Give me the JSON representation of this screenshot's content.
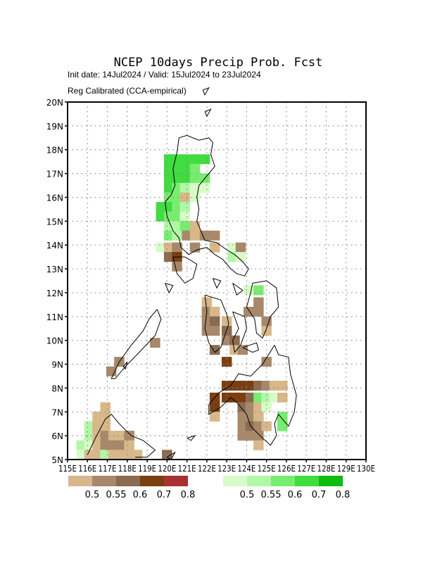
{
  "header": {
    "title": "NCEP 10days Precip Prob. Fcst",
    "init_line": "Init date: 14Jul2024 / Valid: 15Jul2024 to 23Jul2024",
    "method_line": "Reg Calibrated (CCA-empirical)"
  },
  "map": {
    "lon_range": [
      115,
      130
    ],
    "lat_range": [
      5,
      20
    ],
    "lat_labels": [
      "5N",
      "6N",
      "7N",
      "8N",
      "9N",
      "10N",
      "11N",
      "12N",
      "13N",
      "14N",
      "15N",
      "16N",
      "17N",
      "18N",
      "19N",
      "20N"
    ],
    "lon_labels": [
      "115E",
      "116E",
      "117E",
      "118E",
      "119E",
      "120E",
      "121E",
      "122E",
      "123E",
      "124E",
      "125E",
      "126E",
      "127E",
      "128E",
      "129E",
      "130E"
    ]
  },
  "legend": {
    "below_colors": [
      "#d8b88a",
      "#a8886a",
      "#8a6a50",
      "#7a3e10",
      "#a83232"
    ],
    "below_labels": [
      "0.5",
      "0.55",
      "0.6",
      "0.7",
      "0.8"
    ],
    "above_colors": [
      "#d8fcc8",
      "#b0f8a8",
      "#78ec70",
      "#40dc40",
      "#10bc10"
    ],
    "above_labels": [
      "0.5",
      "0.55",
      "0.6",
      "0.7",
      "0.8"
    ]
  },
  "cells": [
    {
      "lon": 120.1,
      "lat": 17.6,
      "c": "a3"
    },
    {
      "lon": 120.5,
      "lat": 17.6,
      "c": "a3"
    },
    {
      "lon": 120.9,
      "lat": 17.6,
      "c": "a3"
    },
    {
      "lon": 121.4,
      "lat": 17.6,
      "c": "a3"
    },
    {
      "lon": 121.9,
      "lat": 17.6,
      "c": "a3"
    },
    {
      "lon": 120.1,
      "lat": 17.2,
      "c": "a3"
    },
    {
      "lon": 120.5,
      "lat": 17.2,
      "c": "a3"
    },
    {
      "lon": 120.9,
      "lat": 17.2,
      "c": "a3"
    },
    {
      "lon": 121.4,
      "lat": 17.2,
      "c": "a2"
    },
    {
      "lon": 120.1,
      "lat": 16.8,
      "c": "a3"
    },
    {
      "lon": 120.5,
      "lat": 16.8,
      "c": "a3"
    },
    {
      "lon": 120.9,
      "lat": 16.8,
      "c": "a3"
    },
    {
      "lon": 121.4,
      "lat": 16.8,
      "c": "a2"
    },
    {
      "lon": 121.9,
      "lat": 16.8,
      "c": "a2"
    },
    {
      "lon": 120.1,
      "lat": 16.4,
      "c": "a3"
    },
    {
      "lon": 120.5,
      "lat": 16.4,
      "c": "a2"
    },
    {
      "lon": 120.9,
      "lat": 16.4,
      "c": "a1"
    },
    {
      "lon": 121.4,
      "lat": 16.4,
      "c": "a0"
    },
    {
      "lon": 121.9,
      "lat": 16.4,
      "c": "a0"
    },
    {
      "lon": 120.1,
      "lat": 16.0,
      "c": "a2"
    },
    {
      "lon": 120.5,
      "lat": 16.0,
      "c": "a2"
    },
    {
      "lon": 120.9,
      "lat": 16.0,
      "c": "b0"
    },
    {
      "lon": 121.4,
      "lat": 16.0,
      "c": "a0"
    },
    {
      "lon": 119.7,
      "lat": 15.6,
      "c": "a3"
    },
    {
      "lon": 120.1,
      "lat": 15.6,
      "c": "a3"
    },
    {
      "lon": 120.5,
      "lat": 15.6,
      "c": "a2"
    },
    {
      "lon": 120.9,
      "lat": 15.6,
      "c": "a1"
    },
    {
      "lon": 119.7,
      "lat": 15.2,
      "c": "a3"
    },
    {
      "lon": 120.1,
      "lat": 15.2,
      "c": "a2"
    },
    {
      "lon": 120.5,
      "lat": 15.2,
      "c": "a2"
    },
    {
      "lon": 120.9,
      "lat": 15.2,
      "c": "a0"
    },
    {
      "lon": 120.1,
      "lat": 14.8,
      "c": "a1"
    },
    {
      "lon": 120.5,
      "lat": 14.8,
      "c": "a1"
    },
    {
      "lon": 120.9,
      "lat": 14.8,
      "c": "a2"
    },
    {
      "lon": 121.4,
      "lat": 14.8,
      "c": "b0"
    },
    {
      "lon": 120.1,
      "lat": 14.4,
      "c": "a2"
    },
    {
      "lon": 120.5,
      "lat": 14.4,
      "c": "a1"
    },
    {
      "lon": 121.0,
      "lat": 14.4,
      "c": "b1"
    },
    {
      "lon": 121.4,
      "lat": 14.4,
      "c": "b0"
    },
    {
      "lon": 121.9,
      "lat": 14.4,
      "c": "b1"
    },
    {
      "lon": 122.4,
      "lat": 14.4,
      "c": "b1"
    },
    {
      "lon": 119.7,
      "lat": 13.9,
      "c": "a0"
    },
    {
      "lon": 120.1,
      "lat": 13.9,
      "c": "b0"
    },
    {
      "lon": 120.5,
      "lat": 13.9,
      "c": "b1"
    },
    {
      "lon": 121.4,
      "lat": 13.9,
      "c": "b1"
    },
    {
      "lon": 122.4,
      "lat": 13.9,
      "c": "b0"
    },
    {
      "lon": 123.3,
      "lat": 13.9,
      "c": "a0"
    },
    {
      "lon": 123.7,
      "lat": 13.9,
      "c": "b1"
    },
    {
      "lon": 120.1,
      "lat": 13.5,
      "c": "b2"
    },
    {
      "lon": 120.5,
      "lat": 13.5,
      "c": "b3"
    },
    {
      "lon": 123.3,
      "lat": 13.5,
      "c": "a1"
    },
    {
      "lon": 123.7,
      "lat": 13.5,
      "c": "a0"
    },
    {
      "lon": 120.5,
      "lat": 13.1,
      "c": "b1"
    },
    {
      "lon": 124.1,
      "lat": 12.1,
      "c": "a0"
    },
    {
      "lon": 124.6,
      "lat": 12.1,
      "c": "a2"
    },
    {
      "lon": 122.0,
      "lat": 11.6,
      "c": "b0"
    },
    {
      "lon": 124.6,
      "lat": 11.6,
      "c": "b1"
    },
    {
      "lon": 122.0,
      "lat": 11.2,
      "c": "b1"
    },
    {
      "lon": 122.4,
      "lat": 11.2,
      "c": "b0"
    },
    {
      "lon": 124.1,
      "lat": 11.2,
      "c": "b1"
    },
    {
      "lon": 124.6,
      "lat": 11.2,
      "c": "b1"
    },
    {
      "lon": 122.0,
      "lat": 10.8,
      "c": "b1"
    },
    {
      "lon": 122.4,
      "lat": 10.8,
      "c": "b2"
    },
    {
      "lon": 123.0,
      "lat": 10.8,
      "c": "b0"
    },
    {
      "lon": 125.0,
      "lat": 10.8,
      "c": "b1"
    },
    {
      "lon": 122.0,
      "lat": 10.4,
      "c": "b1"
    },
    {
      "lon": 122.4,
      "lat": 10.4,
      "c": "b1"
    },
    {
      "lon": 123.0,
      "lat": 10.4,
      "c": "b2"
    },
    {
      "lon": 125.0,
      "lat": 10.4,
      "c": "b0"
    },
    {
      "lon": 123.0,
      "lat": 10.0,
      "c": "b1"
    },
    {
      "lon": 123.4,
      "lat": 10.0,
      "c": "b2"
    },
    {
      "lon": 122.4,
      "lat": 9.6,
      "c": "b2"
    },
    {
      "lon": 123.4,
      "lat": 9.6,
      "c": "b0"
    },
    {
      "lon": 123.8,
      "lat": 9.6,
      "c": "b1"
    },
    {
      "lon": 119.4,
      "lat": 9.9,
      "c": "b1"
    },
    {
      "lon": 123.0,
      "lat": 9.1,
      "c": "b3"
    },
    {
      "lon": 125.0,
      "lat": 9.1,
      "c": "b1"
    },
    {
      "lon": 117.6,
      "lat": 9.1,
      "c": "b1"
    },
    {
      "lon": 117.2,
      "lat": 8.7,
      "c": "b1"
    },
    {
      "lon": 123.0,
      "lat": 8.1,
      "c": "b3"
    },
    {
      "lon": 123.4,
      "lat": 8.1,
      "c": "b3"
    },
    {
      "lon": 123.8,
      "lat": 8.1,
      "c": "b3"
    },
    {
      "lon": 124.2,
      "lat": 8.1,
      "c": "b3"
    },
    {
      "lon": 124.6,
      "lat": 8.1,
      "c": "b2"
    },
    {
      "lon": 125.0,
      "lat": 8.1,
      "c": "b1"
    },
    {
      "lon": 125.4,
      "lat": 8.1,
      "c": "b0"
    },
    {
      "lon": 125.8,
      "lat": 8.1,
      "c": "b0"
    },
    {
      "lon": 122.4,
      "lat": 7.6,
      "c": "b3"
    },
    {
      "lon": 123.0,
      "lat": 7.6,
      "c": "b3"
    },
    {
      "lon": 123.4,
      "lat": 7.6,
      "c": "b3"
    },
    {
      "lon": 123.8,
      "lat": 7.6,
      "c": "b3"
    },
    {
      "lon": 124.2,
      "lat": 7.6,
      "c": "b2"
    },
    {
      "lon": 124.6,
      "lat": 7.6,
      "c": "a2"
    },
    {
      "lon": 125.0,
      "lat": 7.6,
      "c": "a1"
    },
    {
      "lon": 125.4,
      "lat": 7.6,
      "c": "a0"
    },
    {
      "lon": 125.8,
      "lat": 7.6,
      "c": "b0"
    },
    {
      "lon": 122.4,
      "lat": 7.2,
      "c": "b3"
    },
    {
      "lon": 123.8,
      "lat": 7.2,
      "c": "b2"
    },
    {
      "lon": 124.2,
      "lat": 7.2,
      "c": "b1"
    },
    {
      "lon": 124.6,
      "lat": 7.2,
      "c": "b0"
    },
    {
      "lon": 125.0,
      "lat": 7.2,
      "c": "a0"
    },
    {
      "lon": 122.4,
      "lat": 6.8,
      "c": "b0"
    },
    {
      "lon": 123.8,
      "lat": 6.8,
      "c": "b1"
    },
    {
      "lon": 124.2,
      "lat": 6.8,
      "c": "b1"
    },
    {
      "lon": 124.6,
      "lat": 6.8,
      "c": "b0"
    },
    {
      "lon": 125.8,
      "lat": 6.8,
      "c": "a2"
    },
    {
      "lon": 123.8,
      "lat": 6.4,
      "c": "b1"
    },
    {
      "lon": 124.2,
      "lat": 6.4,
      "c": "b2"
    },
    {
      "lon": 124.6,
      "lat": 6.4,
      "c": "b1"
    },
    {
      "lon": 125.0,
      "lat": 6.4,
      "c": "b0"
    },
    {
      "lon": 125.8,
      "lat": 6.4,
      "c": "a2"
    },
    {
      "lon": 123.8,
      "lat": 6.0,
      "c": "b1"
    },
    {
      "lon": 124.2,
      "lat": 6.0,
      "c": "b1"
    },
    {
      "lon": 124.6,
      "lat": 6.0,
      "c": "b1"
    },
    {
      "lon": 124.6,
      "lat": 5.6,
      "c": "b0"
    },
    {
      "lon": 116.9,
      "lat": 7.2,
      "c": "b0"
    },
    {
      "lon": 116.5,
      "lat": 6.8,
      "c": "b0"
    },
    {
      "lon": 116.9,
      "lat": 6.8,
      "c": "b0"
    },
    {
      "lon": 116.1,
      "lat": 6.4,
      "c": "a1"
    },
    {
      "lon": 116.5,
      "lat": 6.4,
      "c": "b0"
    },
    {
      "lon": 116.9,
      "lat": 6.4,
      "c": "b0"
    },
    {
      "lon": 116.1,
      "lat": 6.0,
      "c": "a1"
    },
    {
      "lon": 116.5,
      "lat": 6.0,
      "c": "b0"
    },
    {
      "lon": 116.9,
      "lat": 6.0,
      "c": "b1"
    },
    {
      "lon": 117.3,
      "lat": 6.0,
      "c": "b0"
    },
    {
      "lon": 117.7,
      "lat": 6.0,
      "c": "b0"
    },
    {
      "lon": 118.1,
      "lat": 6.0,
      "c": "b1"
    },
    {
      "lon": 115.7,
      "lat": 5.6,
      "c": "a1"
    },
    {
      "lon": 116.1,
      "lat": 5.6,
      "c": "a0"
    },
    {
      "lon": 116.5,
      "lat": 5.6,
      "c": "b0"
    },
    {
      "lon": 116.9,
      "lat": 5.6,
      "c": "b1"
    },
    {
      "lon": 117.3,
      "lat": 5.6,
      "c": "b1"
    },
    {
      "lon": 117.7,
      "lat": 5.6,
      "c": "b1"
    },
    {
      "lon": 118.1,
      "lat": 5.6,
      "c": "b0"
    },
    {
      "lon": 115.7,
      "lat": 5.2,
      "c": "a0"
    },
    {
      "lon": 116.1,
      "lat": 5.2,
      "c": "b0"
    },
    {
      "lon": 116.5,
      "lat": 5.2,
      "c": "b0"
    },
    {
      "lon": 116.9,
      "lat": 5.2,
      "c": "a1"
    },
    {
      "lon": 117.3,
      "lat": 5.2,
      "c": "b0"
    },
    {
      "lon": 117.7,
      "lat": 5.2,
      "c": "b0"
    },
    {
      "lon": 118.1,
      "lat": 5.2,
      "c": "b0"
    },
    {
      "lon": 118.5,
      "lat": 5.2,
      "c": "b0"
    },
    {
      "lon": 120.0,
      "lat": 5.2,
      "c": "b2"
    }
  ],
  "coastlines": [
    [
      [
        120.6,
        18.5
      ],
      [
        121.0,
        18.6
      ],
      [
        121.6,
        18.4
      ],
      [
        122.1,
        18.5
      ],
      [
        122.3,
        18.3
      ],
      [
        122.2,
        17.8
      ],
      [
        122.4,
        17.3
      ],
      [
        122.0,
        16.9
      ],
      [
        121.6,
        16.5
      ],
      [
        121.5,
        16.0
      ],
      [
        121.6,
        15.5
      ],
      [
        121.5,
        15.0
      ],
      [
        121.7,
        14.6
      ],
      [
        121.9,
        14.2
      ],
      [
        122.5,
        14.1
      ],
      [
        123.0,
        13.8
      ],
      [
        123.4,
        13.6
      ],
      [
        123.8,
        13.3
      ],
      [
        124.1,
        13.0
      ],
      [
        123.9,
        12.7
      ],
      [
        123.5,
        12.8
      ],
      [
        123.2,
        13.0
      ],
      [
        122.8,
        13.4
      ],
      [
        122.4,
        13.6
      ],
      [
        122.0,
        13.9
      ],
      [
        121.5,
        13.8
      ],
      [
        121.1,
        13.6
      ],
      [
        120.7,
        13.9
      ],
      [
        120.6,
        14.3
      ],
      [
        120.3,
        14.6
      ],
      [
        120.0,
        15.2
      ],
      [
        119.9,
        15.8
      ],
      [
        120.2,
        16.1
      ],
      [
        120.4,
        16.5
      ],
      [
        120.3,
        17.2
      ],
      [
        120.5,
        17.9
      ],
      [
        120.6,
        18.5
      ]
    ],
    [
      [
        120.3,
        13.5
      ],
      [
        120.9,
        13.5
      ],
      [
        121.5,
        13.2
      ],
      [
        121.3,
        12.6
      ],
      [
        120.9,
        12.4
      ],
      [
        120.5,
        12.8
      ],
      [
        120.3,
        13.5
      ]
    ],
    [
      [
        119.5,
        11.3
      ],
      [
        119.1,
        10.9
      ],
      [
        118.8,
        10.4
      ],
      [
        118.2,
        9.8
      ],
      [
        117.6,
        9.1
      ],
      [
        117.2,
        8.4
      ],
      [
        117.4,
        8.4
      ],
      [
        117.9,
        8.9
      ],
      [
        118.6,
        9.5
      ],
      [
        119.4,
        10.2
      ],
      [
        119.7,
        10.9
      ],
      [
        119.5,
        11.3
      ]
    ],
    [
      [
        121.9,
        11.9
      ],
      [
        122.7,
        11.7
      ],
      [
        123.0,
        11.1
      ],
      [
        123.1,
        10.7
      ],
      [
        122.9,
        10.2
      ],
      [
        122.7,
        9.7
      ],
      [
        122.4,
        9.5
      ],
      [
        122.1,
        9.9
      ],
      [
        121.9,
        10.5
      ],
      [
        122.0,
        11.2
      ],
      [
        121.9,
        11.9
      ]
    ],
    [
      [
        123.3,
        11.2
      ],
      [
        123.9,
        11.0
      ],
      [
        124.0,
        10.5
      ],
      [
        123.7,
        9.8
      ],
      [
        123.4,
        9.5
      ],
      [
        123.3,
        10.0
      ],
      [
        123.6,
        10.5
      ],
      [
        123.3,
        11.2
      ]
    ],
    [
      [
        124.3,
        12.4
      ],
      [
        125.0,
        12.5
      ],
      [
        125.5,
        12.2
      ],
      [
        125.6,
        11.4
      ],
      [
        125.2,
        11.0
      ],
      [
        125.0,
        10.5
      ],
      [
        124.8,
        10.1
      ],
      [
        124.5,
        10.3
      ],
      [
        124.4,
        10.9
      ],
      [
        124.0,
        11.4
      ],
      [
        124.2,
        12.0
      ],
      [
        124.3,
        12.4
      ]
    ],
    [
      [
        123.8,
        9.7
      ],
      [
        124.5,
        9.9
      ],
      [
        124.6,
        9.6
      ],
      [
        124.3,
        9.5
      ],
      [
        123.8,
        9.7
      ]
    ],
    [
      [
        125.4,
        9.8
      ],
      [
        125.6,
        9.4
      ],
      [
        126.1,
        9.3
      ],
      [
        126.2,
        8.6
      ],
      [
        126.5,
        7.7
      ],
      [
        126.4,
        7.0
      ],
      [
        126.1,
        6.4
      ],
      [
        125.6,
        6.9
      ],
      [
        125.4,
        6.5
      ],
      [
        125.5,
        6.0
      ],
      [
        125.2,
        5.6
      ],
      [
        124.8,
        5.9
      ],
      [
        124.2,
        6.4
      ],
      [
        124.0,
        6.9
      ],
      [
        123.5,
        7.4
      ],
      [
        123.2,
        7.6
      ],
      [
        122.7,
        7.2
      ],
      [
        122.1,
        6.9
      ],
      [
        122.1,
        7.3
      ],
      [
        122.6,
        7.8
      ],
      [
        123.2,
        8.1
      ],
      [
        123.6,
        8.6
      ],
      [
        124.2,
        8.5
      ],
      [
        124.8,
        9.0
      ],
      [
        125.4,
        9.8
      ]
    ],
    [
      [
        116.0,
        5.2
      ],
      [
        116.4,
        5.9
      ],
      [
        116.9,
        6.7
      ],
      [
        117.2,
        6.9
      ],
      [
        117.6,
        6.5
      ],
      [
        118.2,
        6.0
      ],
      [
        118.8,
        5.8
      ],
      [
        119.4,
        5.4
      ],
      [
        119.0,
        5.1
      ],
      [
        118.4,
        5.1
      ]
    ]
  ],
  "islands": [
    [
      [
        121.8,
        20.5
      ],
      [
        122.1,
        20.6
      ],
      [
        121.9,
        20.3
      ],
      [
        121.8,
        20.5
      ]
    ],
    [
      [
        121.9,
        19.6
      ],
      [
        122.2,
        19.7
      ],
      [
        122.0,
        19.4
      ],
      [
        121.9,
        19.6
      ]
    ],
    [
      [
        119.9,
        12.4
      ],
      [
        120.3,
        12.3
      ],
      [
        120.1,
        12.0
      ],
      [
        119.9,
        12.4
      ]
    ],
    [
      [
        122.3,
        12.6
      ],
      [
        122.7,
        12.5
      ],
      [
        122.5,
        12.2
      ],
      [
        122.3,
        12.6
      ]
    ],
    [
      [
        123.3,
        12.4
      ],
      [
        123.8,
        12.1
      ],
      [
        123.5,
        11.9
      ],
      [
        123.3,
        12.4
      ]
    ],
    [
      [
        121.0,
        5.9
      ],
      [
        121.4,
        6.0
      ],
      [
        121.2,
        5.8
      ],
      [
        121.0,
        5.9
      ]
    ],
    [
      [
        120.0,
        5.1
      ],
      [
        120.4,
        5.3
      ],
      [
        120.2,
        5.0
      ],
      [
        120.0,
        5.1
      ]
    ],
    [
      [
        117.8,
        8.9
      ],
      [
        118.0,
        9.1
      ],
      [
        117.9,
        8.8
      ],
      [
        117.8,
        8.9
      ]
    ]
  ]
}
